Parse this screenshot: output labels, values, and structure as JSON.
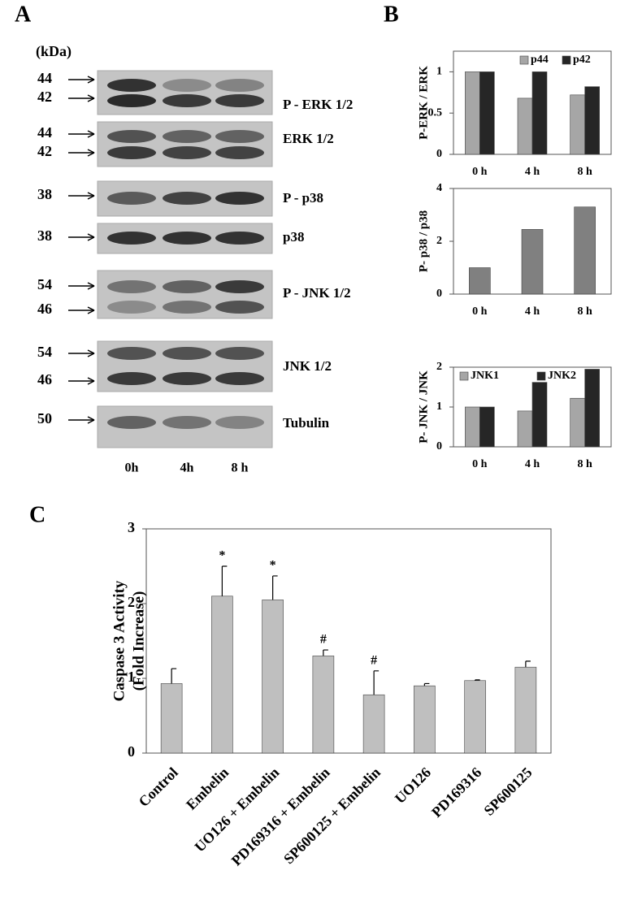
{
  "panel_labels": [
    "A",
    "B",
    "C"
  ],
  "blot": {
    "unit": "(kDa)",
    "lanes": [
      "0h",
      "4h",
      "8 h"
    ],
    "rows": [
      {
        "protein": "P - ERK 1/2",
        "markers": [
          "44",
          "42"
        ]
      },
      {
        "protein": "ERK 1/2",
        "markers": [
          "44",
          "42"
        ]
      },
      {
        "protein": "P - p38",
        "markers": [
          "38"
        ]
      },
      {
        "protein": "p38",
        "markers": [
          "38"
        ]
      },
      {
        "protein": "P - JNK 1/2",
        "markers": [
          "54",
          "46"
        ]
      },
      {
        "protein": "JNK 1/2",
        "markers": [
          "54",
          "46"
        ]
      },
      {
        "protein": "Tubulin",
        "markers": [
          "50"
        ]
      }
    ]
  },
  "chart_data": [
    {
      "type": "bar",
      "ylabel": "P-ERK / ERK",
      "categories": [
        "0 h",
        "4 h",
        "8 h"
      ],
      "series": [
        {
          "name": "p44",
          "color": "#a6a6a6",
          "values": [
            1,
            0.68,
            0.72
          ]
        },
        {
          "name": "p42",
          "color": "#262626",
          "values": [
            1,
            1,
            0.82
          ]
        }
      ],
      "ylim": [
        0,
        1.25
      ],
      "yticks": [
        0,
        0.5,
        1
      ],
      "legend": "upper right"
    },
    {
      "type": "bar",
      "ylabel": "P- p38 / p38",
      "categories": [
        "0 h",
        "4 h",
        "8 h"
      ],
      "series": [
        {
          "name": "P-p38",
          "color": "#808080",
          "values": [
            1,
            2.45,
            3.3
          ]
        }
      ],
      "ylim": [
        0,
        4
      ],
      "yticks": [
        0,
        2,
        4
      ]
    },
    {
      "type": "bar",
      "ylabel": "P- JNK / JNK",
      "categories": [
        "0 h",
        "4 h",
        "8 h"
      ],
      "series": [
        {
          "name": "JNK1",
          "color": "#a6a6a6",
          "values": [
            1,
            0.9,
            1.22
          ]
        },
        {
          "name": "JNK2",
          "color": "#262626",
          "values": [
            1,
            1.62,
            1.95
          ]
        }
      ],
      "ylim": [
        0,
        2
      ],
      "yticks": [
        0,
        1,
        2
      ],
      "legend": "upper left"
    },
    {
      "type": "bar",
      "ylabel": [
        "Caspase 3 Activity",
        "(Fold Increase)"
      ],
      "categories": [
        "Control",
        "Embelin",
        "UO126 + Embelin",
        "PD169316 + Embelin",
        "SP600125 + Embelin",
        "UO126",
        "PD169316",
        "SP600125"
      ],
      "series": [
        {
          "name": "Caspase 3",
          "color": "#bfbfbf",
          "values": [
            0.93,
            2.1,
            2.05,
            1.3,
            0.78,
            0.9,
            0.97,
            1.15
          ]
        }
      ],
      "errors": [
        0.2,
        0.4,
        0.32,
        0.08,
        0.32,
        0.03,
        0.01,
        0.08
      ],
      "annotations": [
        null,
        "*",
        "*",
        "#",
        "#",
        null,
        null,
        null
      ],
      "ylim": [
        0,
        3
      ],
      "yticks": [
        0,
        1,
        2,
        3
      ]
    }
  ]
}
